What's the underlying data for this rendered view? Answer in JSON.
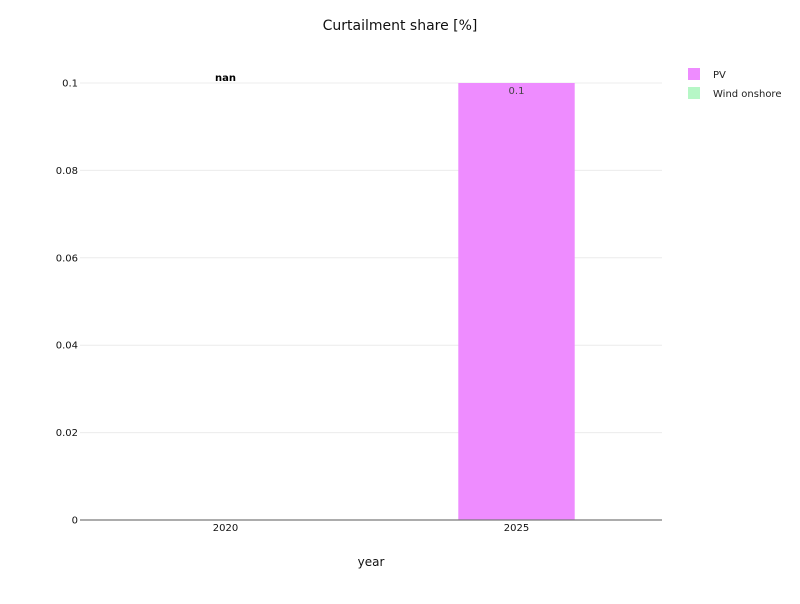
{
  "chart_data": {
    "type": "bar",
    "title": "Curtailment share [%]",
    "xlabel": "year",
    "ylabel": "",
    "categories": [
      "2020",
      "2025"
    ],
    "ylim": [
      0,
      0.1
    ],
    "yticks": [
      "0",
      "0.02",
      "0.04",
      "0.06",
      "0.08",
      "0.1"
    ],
    "grid": true,
    "legend_position": "top-right",
    "series": [
      {
        "name": "PV",
        "color": "#ee8cff",
        "values": [
          null,
          0.1
        ],
        "labels": [
          "",
          "0.1"
        ]
      },
      {
        "name": "Wind onshore",
        "color": "#b6f7c6",
        "values": [
          null,
          null
        ],
        "labels": [
          "",
          ""
        ]
      }
    ],
    "annotations": [
      {
        "category": "2020",
        "text": "nan"
      }
    ]
  }
}
